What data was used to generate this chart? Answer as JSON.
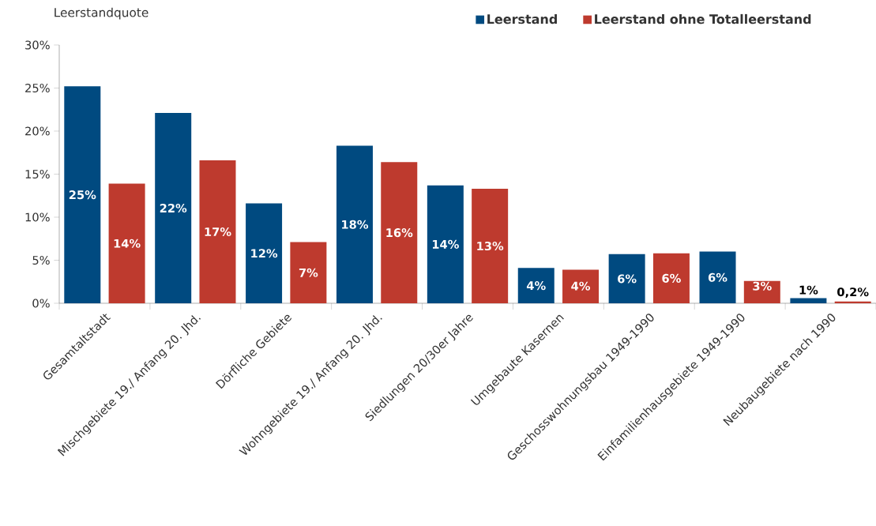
{
  "chart_data": {
    "type": "bar",
    "ylabel": "Leerstandquote",
    "categories": [
      "Gesamtaltstadt",
      "Mischgebiete 19./ Anfang 20. Jhd.",
      "Dörfliche Gebiete",
      "Wohngebiete 19./ Anfang 20. Jhd.",
      "Siedlungen 20/30er Jahre",
      "Umgebaute Kasernen",
      "Geschosswohnungsbau 1949-1990",
      "Einfamilienhausgebiete 1949-1990",
      "Neubaugebiete nach 1990"
    ],
    "series": [
      {
        "name": "Leerstand",
        "color": "#004a80",
        "values": [
          25.2,
          22.1,
          11.6,
          18.3,
          13.7,
          4.1,
          5.7,
          6.0,
          0.6
        ],
        "value_labels": [
          "25%",
          "22%",
          "12%",
          "18%",
          "14%",
          "4%",
          "6%",
          "6%",
          "1%"
        ]
      },
      {
        "name": "Leerstand ohne Totalleerstand",
        "color": "#be3a2e",
        "values": [
          13.9,
          16.6,
          7.1,
          16.4,
          13.3,
          3.9,
          5.8,
          2.6,
          0.2
        ],
        "value_labels": [
          "14%",
          "17%",
          "7%",
          "16%",
          "13%",
          "4%",
          "6%",
          "3%",
          "0,2%"
        ]
      }
    ],
    "ylim": [
      0,
      30
    ],
    "yticks": [
      {
        "value": 0,
        "label": "0%"
      },
      {
        "value": 5,
        "label": "5%"
      },
      {
        "value": 10,
        "label": "10%"
      },
      {
        "value": 15,
        "label": "15%"
      },
      {
        "value": 20,
        "label": "20%"
      },
      {
        "value": 25,
        "label": "25%"
      },
      {
        "value": 30,
        "label": "30%"
      }
    ],
    "legend": "top right",
    "grid": false
  }
}
